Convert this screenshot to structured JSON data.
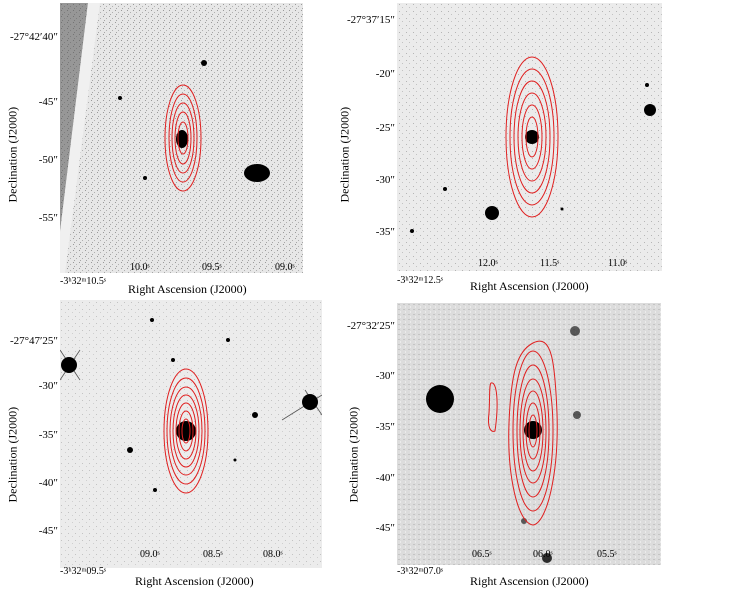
{
  "axes": {
    "xlabel": "Right Ascension (J2000)",
    "ylabel": "Declination (J2000)"
  },
  "panels": [
    {
      "id": "p1",
      "yticks": [
        "-27°42′40″",
        "-45″",
        "-50″",
        "-55″"
      ],
      "xticks": [
        "10.0ˢ",
        "09.5ˢ",
        "09.0ˢ"
      ],
      "xorigin": "-3ʰ32ᵐ10.5ˢ"
    },
    {
      "id": "p2",
      "yticks": [
        "-27°37′15″",
        "-20″",
        "-25″",
        "-30″",
        "-35″"
      ],
      "xticks": [
        "12.0ˢ",
        "11.5ˢ",
        "11.0ˢ"
      ],
      "xorigin": "-3ʰ32ᵐ12.5ˢ"
    },
    {
      "id": "p3",
      "yticks": [
        "-27°47′25″",
        "-30″",
        "-35″",
        "-40″",
        "-45″"
      ],
      "xticks": [
        "09.0ˢ",
        "08.5ˢ",
        "08.0ˢ"
      ],
      "xorigin": "-3ʰ32ᵐ09.5ˢ"
    },
    {
      "id": "p4",
      "yticks": [
        "-27°32′25″",
        "-30″",
        "-35″",
        "-40″",
        "-45″"
      ],
      "xticks": [
        "06.5ˢ",
        "06.0ˢ",
        "05.5ˢ"
      ],
      "xorigin": "-3ʰ32ᵐ07.0ˢ"
    }
  ],
  "colors": {
    "contour": "#e02020",
    "background": "#e8e8e8",
    "source": "#000000"
  }
}
